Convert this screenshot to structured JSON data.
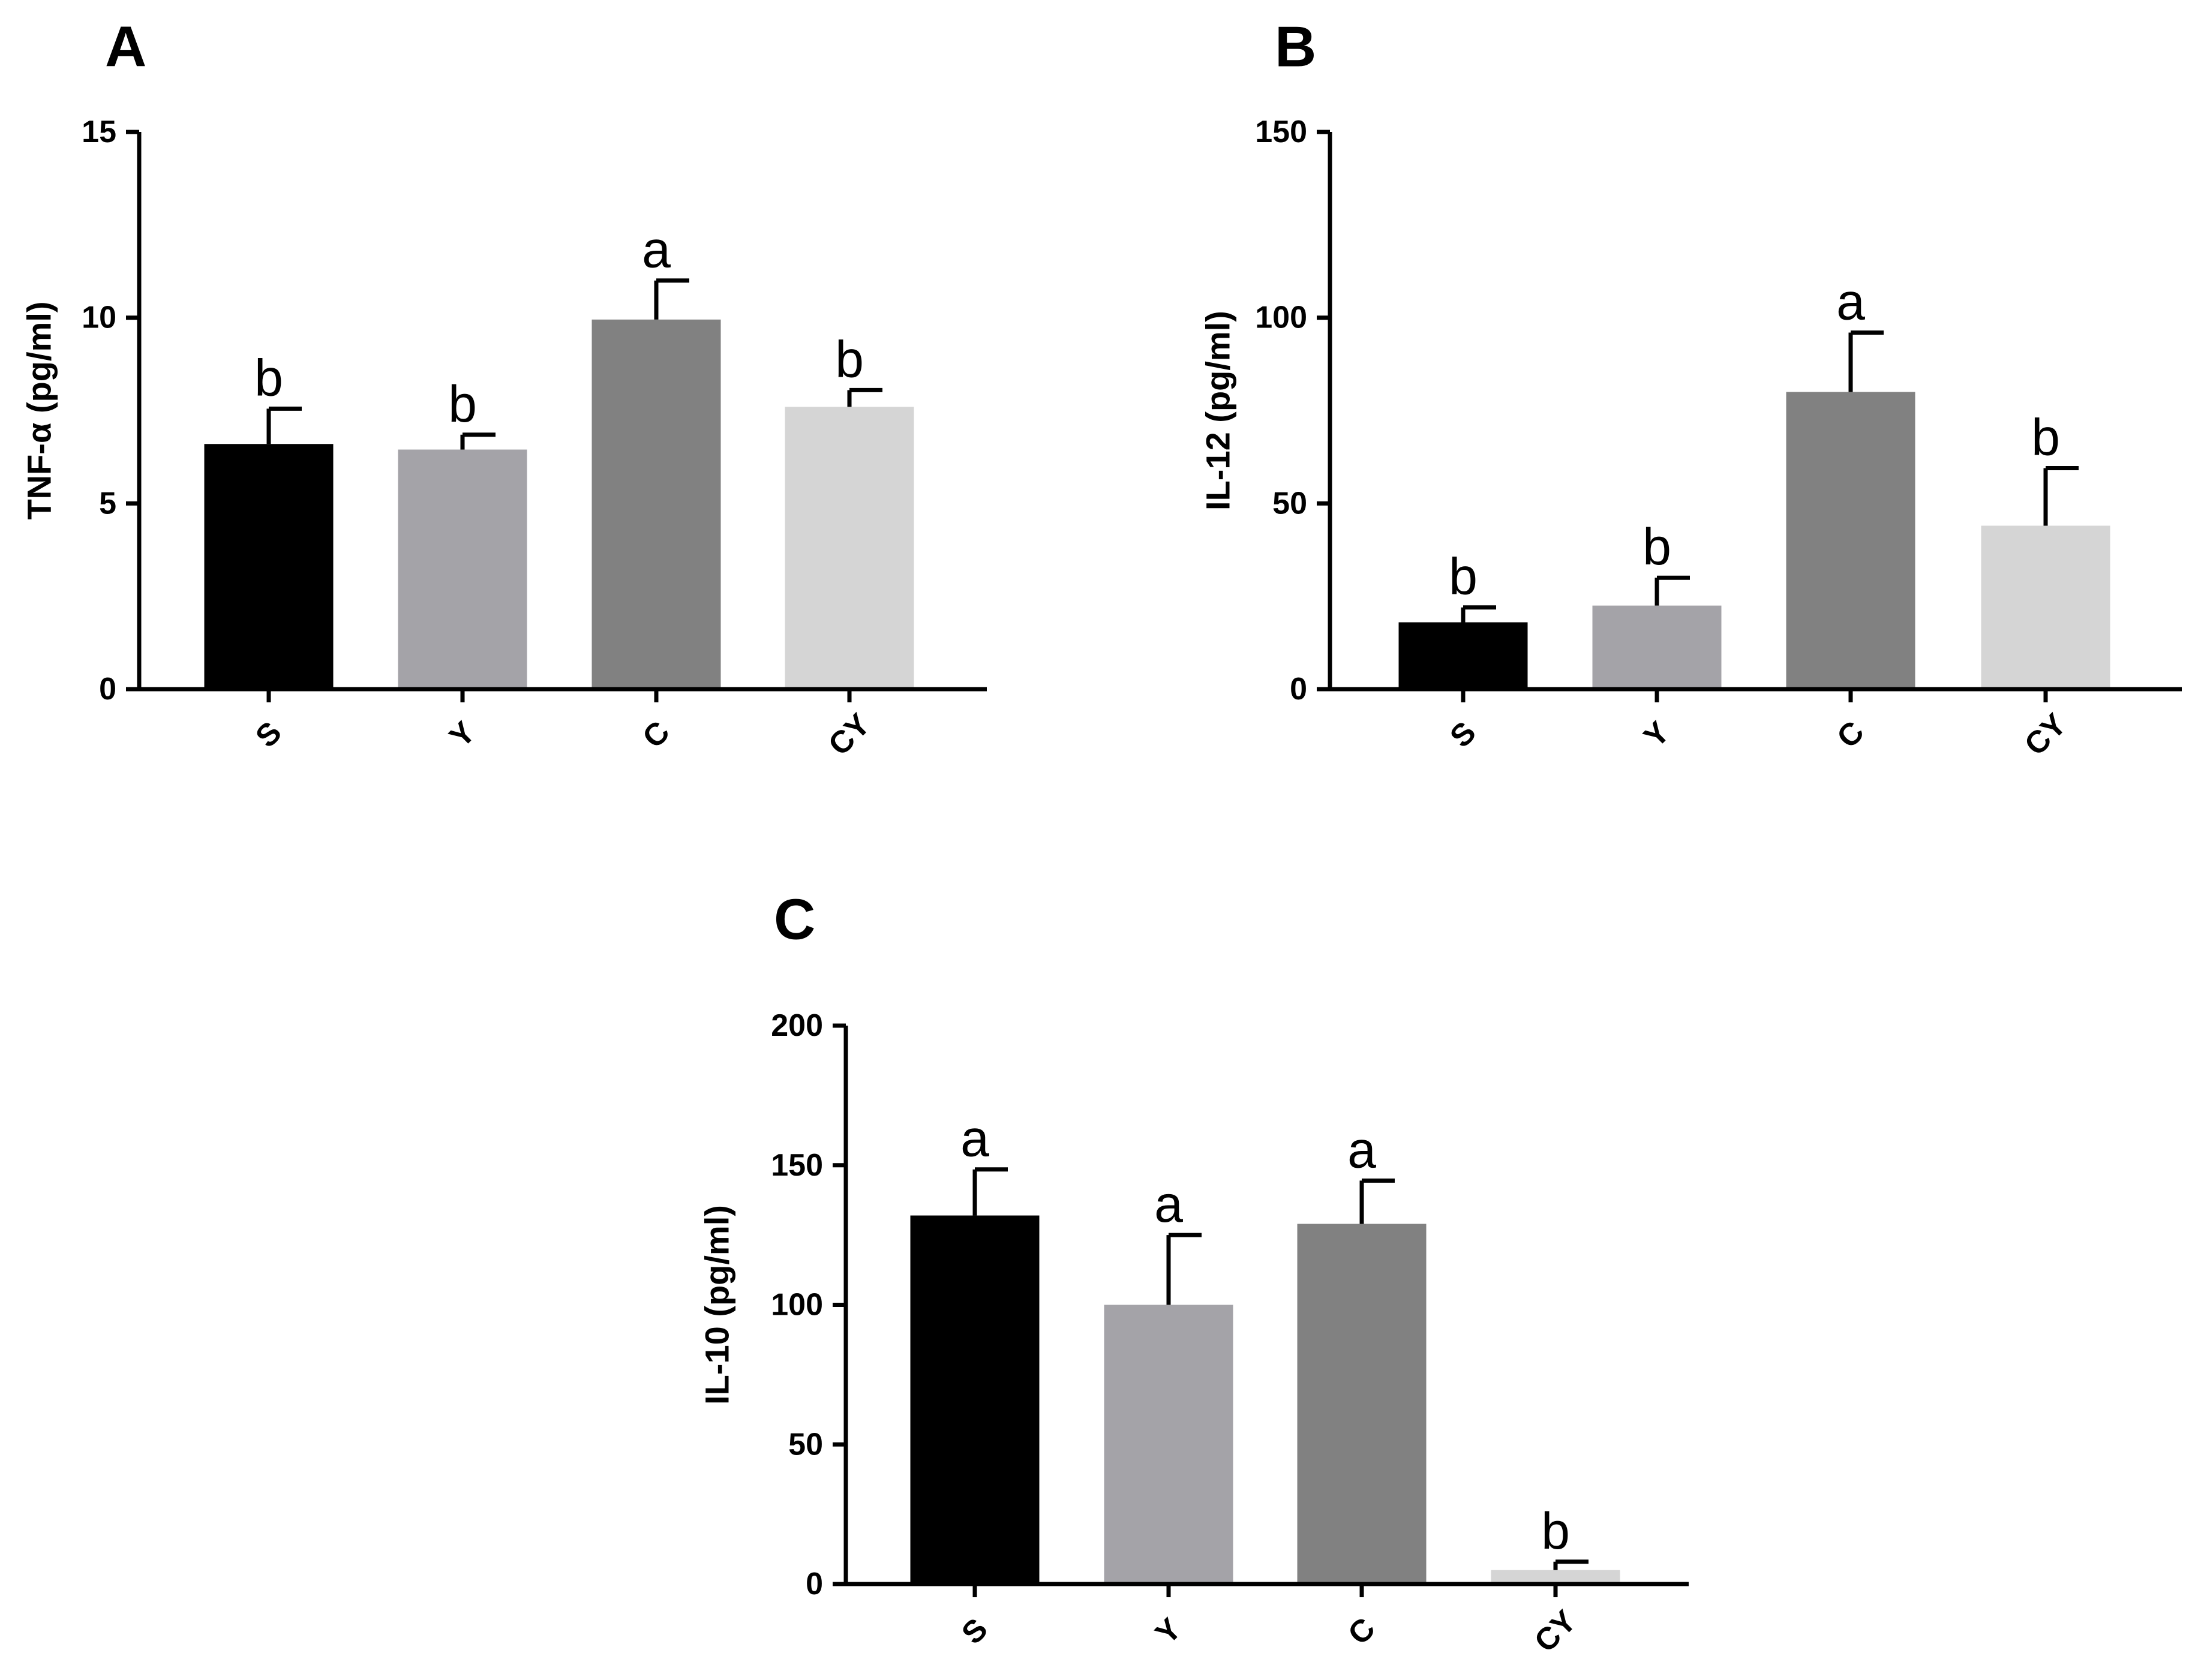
{
  "chart_data": [
    {
      "type": "bar",
      "panel": "A",
      "ylabel": "TNF-α (pg/ml)",
      "ylim": [
        0,
        15
      ],
      "yticks": [
        0,
        5,
        10,
        15
      ],
      "categories": [
        "S",
        "Y",
        "C",
        "CY"
      ],
      "values": [
        6.6,
        6.45,
        9.95,
        7.6
      ],
      "errors": [
        0.95,
        0.4,
        1.05,
        0.45
      ],
      "significance": [
        "b",
        "b",
        "a",
        "b"
      ],
      "colors": [
        "#000000",
        "#a4a3a8",
        "#818181",
        "#d5d5d5"
      ]
    },
    {
      "type": "bar",
      "panel": "B",
      "ylabel": "IL-12 (pg/ml)",
      "ylim": [
        0,
        150
      ],
      "yticks": [
        0,
        50,
        100,
        150
      ],
      "categories": [
        "S",
        "Y",
        "C",
        "CY"
      ],
      "values": [
        18,
        22.5,
        80,
        44
      ],
      "errors": [
        4,
        7.5,
        16,
        15.5
      ],
      "significance": [
        "b",
        "b",
        "a",
        "b"
      ],
      "colors": [
        "#000000",
        "#a4a3a8",
        "#818181",
        "#d5d5d5"
      ]
    },
    {
      "type": "bar",
      "panel": "C",
      "ylabel": "IL-10 (pg/ml)",
      "ylim": [
        0,
        200
      ],
      "yticks": [
        0,
        50,
        100,
        150,
        200
      ],
      "categories": [
        "S",
        "Y",
        "C",
        "CY"
      ],
      "values": [
        132,
        100,
        129,
        5
      ],
      "errors": [
        16.5,
        25,
        15.5,
        3
      ],
      "significance": [
        "a",
        "a",
        "a",
        "b"
      ],
      "colors": [
        "#000000",
        "#a4a3a8",
        "#818181",
        "#d5d5d5"
      ]
    }
  ]
}
